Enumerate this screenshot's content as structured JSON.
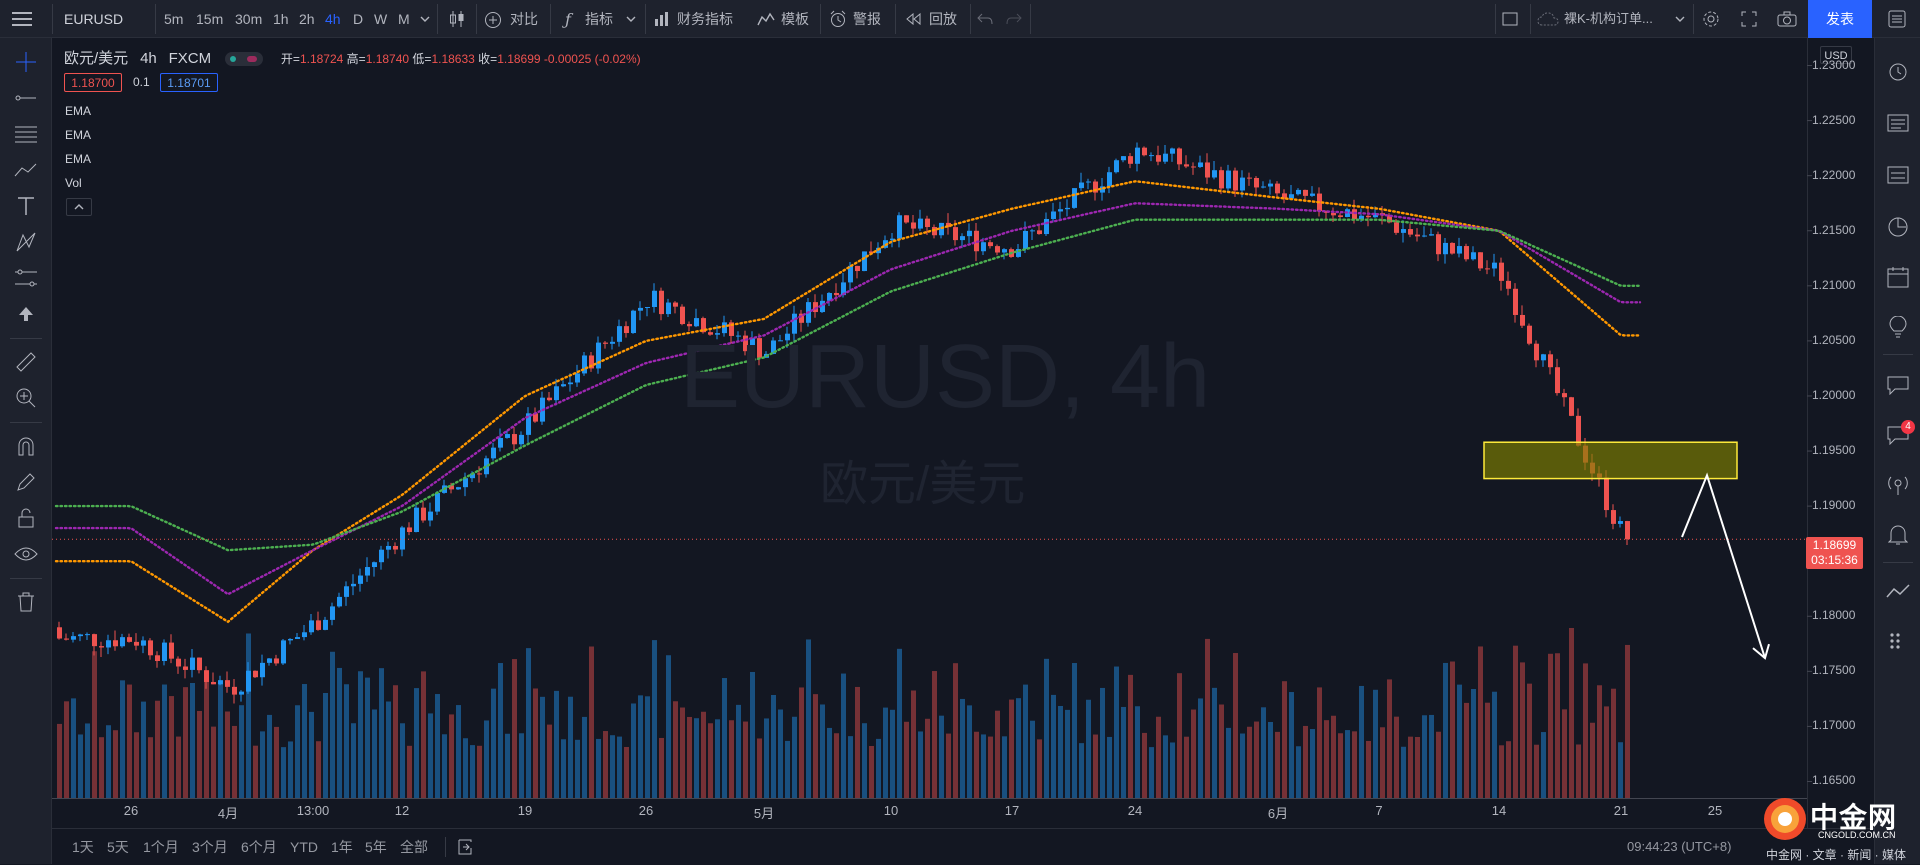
{
  "topbar": {
    "symbol": "EURUSD",
    "intervals": [
      "5m",
      "15m",
      "30m",
      "1h",
      "2h",
      "4h",
      "D",
      "W",
      "M"
    ],
    "active_interval": "4h",
    "compare": "对比",
    "indicators": "指标",
    "financials": "财务指标",
    "templates": "模板",
    "alert": "警报",
    "replay": "回放",
    "layout_name": "裸K-机构订单...",
    "publish": "发表"
  },
  "legend": {
    "title": "欧元/美元",
    "interval": "4h",
    "exchange": "FXCM",
    "open_label": "开=",
    "open": "1.18724",
    "high_label": "高=",
    "high": "1.18740",
    "low_label": "低=",
    "low": "1.18633",
    "close_label": "收=",
    "close": "1.18699",
    "change": "-0.00025 (-0.02%)",
    "bid": "1.18700",
    "spread": "0.1",
    "ask": "1.18701",
    "indicators": [
      "EMA",
      "EMA",
      "EMA",
      "Vol"
    ]
  },
  "watermark": {
    "symbol": "EURUSD, 4h",
    "name": "欧元/美元"
  },
  "price_axis": {
    "currency": "USD",
    "ticks": [
      "1.23000",
      "1.22500",
      "1.22000",
      "1.21500",
      "1.21000",
      "1.20500",
      "1.20000",
      "1.19500",
      "1.19000",
      "1.18500",
      "1.18000",
      "1.17500",
      "1.17000",
      "1.16500"
    ],
    "last_price": "1.18699",
    "countdown": "03:15:36"
  },
  "time_axis": {
    "ticks": [
      "26",
      "4月",
      "13:00",
      "12",
      "19",
      "26",
      "5月",
      "10",
      "17",
      "24",
      "6月",
      "7",
      "14",
      "21",
      "25"
    ]
  },
  "bottombar": {
    "ranges": [
      "1天",
      "5天",
      "1个月",
      "3个月",
      "6个月",
      "YTD",
      "1年",
      "5年",
      "全部"
    ],
    "clock": "09:44:23 (UTC+8)"
  },
  "rightbar": {
    "badge": "4"
  },
  "watermark_logo": {
    "brand": "中金网",
    "site": "CNGOLD.COM.CN",
    "footer": "中金网 · 文章 · 新闻 · 媒体"
  },
  "colors": {
    "up": "#2196f3",
    "down": "#ef5350",
    "ema1": "#ff9800",
    "ema2": "#9c27b0",
    "ema3": "#4caf50",
    "zone": "#808000",
    "accent": "#2962ff"
  },
  "chart_data": {
    "type": "candlestick",
    "symbol": "EURUSD",
    "interval": "4h",
    "x": [
      "26",
      "4月",
      "13:00",
      "12",
      "19",
      "26",
      "5月",
      "10",
      "17",
      "24",
      "6月",
      "7",
      "14",
      "21"
    ],
    "close": [
      1.178,
      1.1735,
      1.1795,
      1.188,
      1.1975,
      1.209,
      1.204,
      1.2155,
      1.2135,
      1.2225,
      1.218,
      1.216,
      1.211,
      1.187
    ],
    "series": [
      {
        "name": "EMA",
        "values": [
          1.185,
          1.1795,
          1.186,
          1.191,
          1.2,
          1.205,
          1.207,
          1.214,
          1.217,
          1.2195,
          1.218,
          1.217,
          1.215,
          1.2055
        ]
      },
      {
        "name": "EMA",
        "values": [
          1.188,
          1.182,
          1.186,
          1.19,
          1.198,
          1.203,
          1.2055,
          1.2115,
          1.215,
          1.2175,
          1.217,
          1.2165,
          1.215,
          1.2085
        ]
      },
      {
        "name": "EMA",
        "values": [
          1.19,
          1.186,
          1.1865,
          1.1895,
          1.1955,
          1.201,
          1.2035,
          1.2095,
          1.213,
          1.216,
          1.216,
          1.216,
          1.215,
          1.21
        ]
      }
    ],
    "ylim": [
      1.1635,
      1.2325
    ],
    "zone": [
      1.1925,
      1.1958
    ],
    "current_price": 1.18699
  }
}
